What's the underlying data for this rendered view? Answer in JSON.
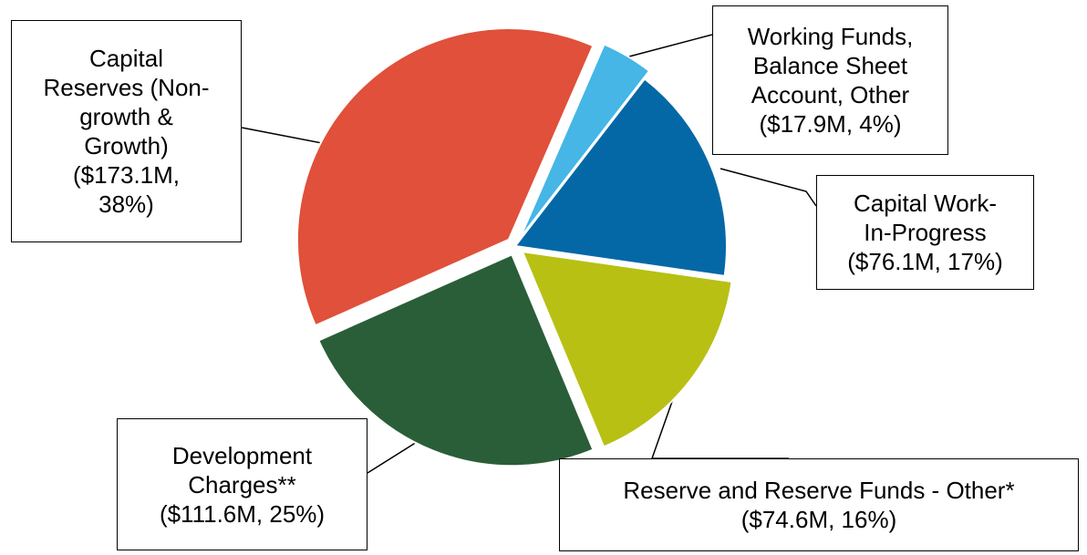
{
  "chart_data": {
    "type": "pie",
    "slices": [
      {
        "name_lines": [
          "Capital",
          "Reserves (Non-",
          "growth &",
          "Growth)",
          "($173.1M,",
          "38%)"
        ],
        "value": 173.1,
        "percent": 38,
        "color": "#e0503a",
        "exploded": true
      },
      {
        "name_lines": [
          "Working Funds,",
          "Balance Sheet",
          "Account, Other",
          "($17.9M, 4%)"
        ],
        "value": 17.9,
        "percent": 4,
        "color": "#45b6e6",
        "exploded": true
      },
      {
        "name_lines": [
          "Capital Work-",
          "In-Progress",
          "($76.1M, 17%)"
        ],
        "value": 76.1,
        "percent": 17,
        "color": "#0568a6",
        "exploded": false
      },
      {
        "name_lines": [
          "Reserve and Reserve Funds - Other*",
          "($74.6M, 16%)"
        ],
        "value": 74.6,
        "percent": 16,
        "color": "#b8c014",
        "exploded": true
      },
      {
        "name_lines": [
          "Development",
          "Charges**",
          "($111.6M, 25%)"
        ],
        "value": 111.6,
        "percent": 25,
        "color": "#2a5e38",
        "exploded": true
      }
    ],
    "title": "",
    "legend": "none",
    "start_angle_deg": 0,
    "direction": "clockwise"
  }
}
